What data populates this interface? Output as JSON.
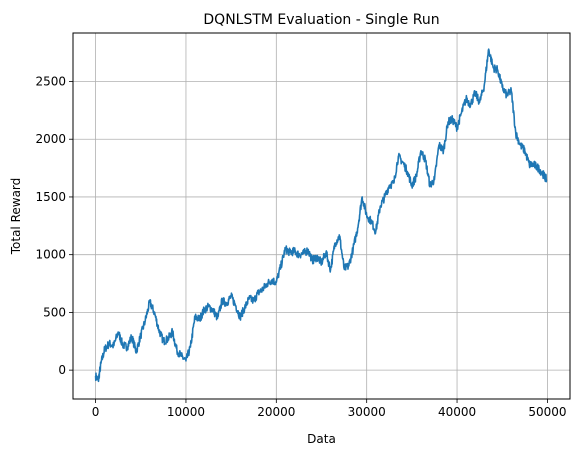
{
  "chart_data": {
    "type": "line",
    "title": "DQNLSTM Evaluation - Single Run",
    "xlabel": "Data",
    "ylabel": "Total Reward",
    "xlim": [
      -2500,
      52500
    ],
    "ylim": [
      -250,
      2920
    ],
    "xticks": [
      0,
      10000,
      20000,
      30000,
      40000,
      50000
    ],
    "yticks": [
      0,
      500,
      1000,
      1500,
      2000,
      2500
    ],
    "grid": true,
    "legend": "none",
    "line_color": "#1f77b4",
    "series": [
      {
        "x": [
          0,
          300,
          600,
          1000,
          1500,
          2000,
          2500,
          3000,
          3500,
          4000,
          4500,
          5000,
          5500,
          6000,
          6500,
          7000,
          7500,
          8000,
          8500,
          9000,
          9500,
          10000,
          10500,
          11000,
          11500,
          12000,
          12500,
          13000,
          13500,
          14000,
          14500,
          15000,
          15500,
          16000,
          16500,
          17000,
          17500,
          18000,
          18500,
          19000,
          19500,
          20000,
          20500,
          21000,
          21500,
          22000,
          22500,
          23000,
          23500,
          24000,
          24500,
          25000,
          25500,
          26000,
          26500,
          27000,
          27500,
          28000,
          28500,
          29000,
          29500,
          30000,
          30500,
          31000,
          31500,
          32000,
          32500,
          33000,
          33500,
          34000,
          34500,
          35000,
          35500,
          36000,
          36500,
          37000,
          37500,
          38000,
          38500,
          39000,
          39500,
          40000,
          40500,
          41000,
          41500,
          42000,
          42500,
          43000,
          43500,
          44000,
          44500,
          45000,
          45500,
          46000,
          46500,
          47000,
          47500,
          48000,
          48500,
          49000,
          49500,
          49900
        ],
        "y": [
          -50,
          -90,
          60,
          180,
          230,
          210,
          330,
          220,
          200,
          290,
          160,
          300,
          430,
          590,
          500,
          350,
          250,
          270,
          330,
          170,
          120,
          80,
          200,
          460,
          440,
          520,
          550,
          520,
          450,
          600,
          580,
          640,
          560,
          460,
          540,
          620,
          600,
          670,
          700,
          750,
          780,
          760,
          900,
          1050,
          1020,
          1030,
          1000,
          1010,
          1040,
          950,
          980,
          930,
          1020,
          870,
          1100,
          1160,
          880,
          900,
          1050,
          1230,
          1500,
          1340,
          1290,
          1200,
          1420,
          1500,
          1600,
          1620,
          1850,
          1800,
          1720,
          1600,
          1680,
          1900,
          1820,
          1600,
          1650,
          1950,
          1900,
          2150,
          2170,
          2100,
          2230,
          2350,
          2300,
          2400,
          2320,
          2460,
          2780,
          2620,
          2600,
          2450,
          2380,
          2420,
          2050,
          1950,
          1900,
          1780,
          1780,
          1750,
          1700,
          1650
        ]
      }
    ]
  }
}
